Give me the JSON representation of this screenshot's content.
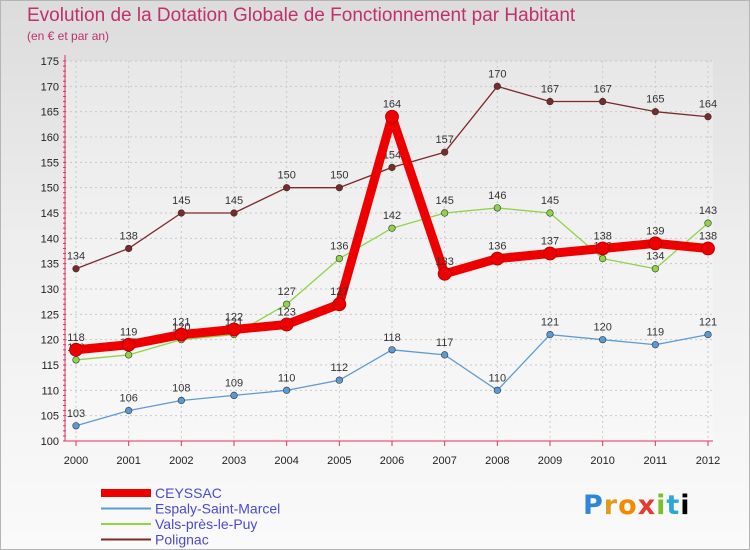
{
  "chart_data": {
    "type": "line",
    "title": "Evolution de la Dotation Globale de Fonctionnement par Habitant",
    "subtitle": "(en € et par an)",
    "xlabel": "",
    "ylabel": "",
    "x": [
      "2000",
      "2001",
      "2002",
      "2003",
      "2004",
      "2005",
      "2006",
      "2007",
      "2008",
      "2009",
      "2010",
      "2011",
      "2012"
    ],
    "ylim": [
      100,
      175
    ],
    "yticks": [
      100,
      105,
      110,
      115,
      120,
      125,
      130,
      135,
      140,
      145,
      150,
      155,
      160,
      165,
      170,
      175
    ],
    "legend_position": "bottom-left",
    "series": [
      {
        "name": "Polignac",
        "color": "#7a2a2a",
        "values": [
          134,
          138,
          145,
          145,
          150,
          150,
          154,
          157,
          170,
          167,
          167,
          165,
          164
        ]
      },
      {
        "name": "Vals-près-le-Puy",
        "color": "#8ed44a",
        "values": [
          116,
          117,
          120,
          121,
          127,
          136,
          142,
          145,
          146,
          145,
          136,
          134,
          143
        ]
      },
      {
        "name": "Espaly-Saint-Marcel",
        "color": "#5b9bd5",
        "values": [
          103,
          106,
          108,
          109,
          110,
          112,
          118,
          117,
          110,
          121,
          120,
          119,
          121
        ]
      },
      {
        "name": "CEYSSAC",
        "color": "#ee0000",
        "values": [
          118,
          119,
          121,
          122,
          123,
          127,
          164,
          133,
          136,
          137,
          138,
          139,
          138
        ]
      }
    ]
  },
  "legend": [
    "CEYSSAC",
    "Espaly-Saint-Marcel",
    "Vals-près-le-Puy",
    "Polignac"
  ],
  "logo": {
    "letters": [
      "P",
      "r",
      "o",
      "x",
      "i",
      "t",
      "i"
    ]
  }
}
